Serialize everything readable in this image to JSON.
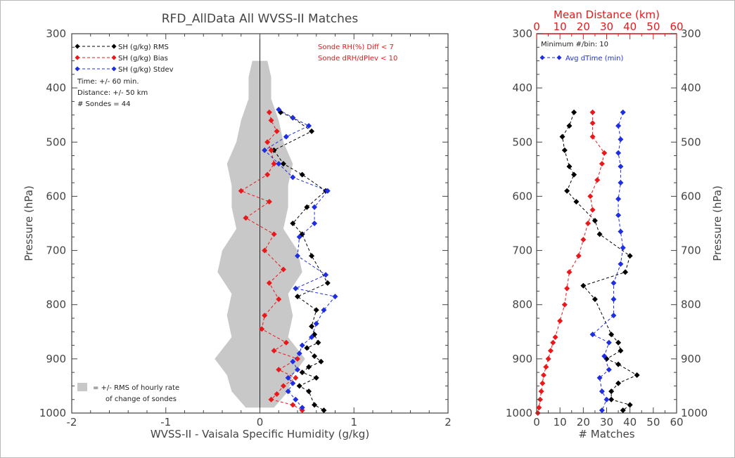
{
  "chart_data": [
    {
      "type": "line",
      "title": "RFD_AllData All WVSS-II Matches",
      "xlabel": "WVSS-II - Vaisala Specific Humidity (g/kg)",
      "ylabel": "Pressure (hPa)",
      "xlim": [
        -2,
        2
      ],
      "ylim": [
        1000,
        300
      ],
      "x_ticks": [
        "-2",
        "-1",
        "0",
        "1",
        "2"
      ],
      "y_ticks": [
        "300",
        "400",
        "500",
        "600",
        "700",
        "800",
        "900",
        "1000"
      ],
      "legend_position": "top-left",
      "series": [
        {
          "name": "SH (g/kg) RMS",
          "color": "#000000",
          "pressure": [
            445,
            455,
            480,
            515,
            540,
            560,
            590,
            620,
            650,
            670,
            710,
            760,
            785,
            810,
            840,
            855,
            870,
            880,
            895,
            905,
            915,
            925,
            935,
            950,
            960,
            985,
            995
          ],
          "values": [
            0.22,
            0.35,
            0.55,
            0.15,
            0.25,
            0.45,
            0.7,
            0.5,
            0.35,
            0.45,
            0.55,
            0.72,
            0.4,
            0.6,
            0.55,
            0.58,
            0.62,
            0.5,
            0.58,
            0.65,
            0.52,
            0.45,
            0.6,
            0.42,
            0.52,
            0.58,
            0.68
          ]
        },
        {
          "name": "SH (g/kg) Bias",
          "color": "#e8181b",
          "pressure": [
            445,
            460,
            480,
            500,
            515,
            540,
            560,
            590,
            610,
            640,
            670,
            700,
            735,
            760,
            790,
            820,
            845,
            870,
            885,
            900,
            920,
            935,
            950,
            965,
            975,
            985,
            995
          ],
          "values": [
            0.1,
            0.12,
            0.18,
            0.08,
            0.12,
            0.15,
            0.08,
            -0.2,
            0.1,
            -0.15,
            0.15,
            0.05,
            0.25,
            0.1,
            0.2,
            0.05,
            0.02,
            0.28,
            0.15,
            0.4,
            0.2,
            0.38,
            0.25,
            0.18,
            0.12,
            0.35,
            0.45
          ]
        },
        {
          "name": "SH (g/kg) Stdev",
          "color": "#1f2ee0",
          "pressure": [
            440,
            455,
            470,
            490,
            515,
            540,
            565,
            590,
            620,
            650,
            675,
            710,
            745,
            770,
            785,
            810,
            835,
            860,
            875,
            890,
            905,
            920,
            935,
            945,
            960,
            975,
            990
          ],
          "values": [
            0.2,
            0.35,
            0.52,
            0.28,
            0.05,
            0.2,
            0.35,
            0.72,
            0.58,
            0.58,
            0.42,
            0.4,
            0.7,
            0.38,
            0.8,
            0.68,
            0.6,
            0.55,
            0.45,
            0.42,
            0.35,
            0.4,
            0.3,
            0.35,
            0.3,
            0.38,
            0.45
          ]
        }
      ],
      "shaded_band": {
        "label_line1": "= +/- RMS of hourly rate",
        "label_line2": "of change of sondes",
        "color": "#c8c8c8",
        "pressure": [
          350,
          380,
          420,
          460,
          500,
          540,
          580,
          620,
          660,
          700,
          740,
          780,
          820,
          860,
          900,
          930,
          960,
          990
        ],
        "halfwidth": [
          0.08,
          0.12,
          0.12,
          0.2,
          0.25,
          0.35,
          0.3,
          0.3,
          0.25,
          0.4,
          0.45,
          0.3,
          0.35,
          0.3,
          0.48,
          0.35,
          0.3,
          0.15
        ]
      },
      "annotations": {
        "time": "Time: +/- 60 min.",
        "distance": "Distance: +/- 50 km",
        "sondes": "# Sondes = 44",
        "filter1": "Sonde RH(%) Diff < 7",
        "filter2": "Sonde dRH/dPlev < 10"
      }
    },
    {
      "type": "line",
      "xlabel": "# Matches",
      "x2label": "Mean Distance (km)",
      "ylabel": "Pressure (hPa)",
      "xlim": [
        0,
        60
      ],
      "x2lim": [
        0,
        60
      ],
      "ylim": [
        1000,
        300
      ],
      "x_ticks": [
        "0",
        "10",
        "20",
        "30",
        "40",
        "50",
        "60"
      ],
      "y_ticks": [
        "300",
        "400",
        "500",
        "600",
        "700",
        "800",
        "900",
        "1000"
      ],
      "minimum_note": "Minimum #/bin: 10",
      "series": [
        {
          "name": "",
          "color": "#000000",
          "pressure": [
            445,
            470,
            490,
            515,
            545,
            560,
            590,
            610,
            645,
            670,
            710,
            740,
            765,
            790,
            855,
            870,
            885,
            900,
            910,
            930,
            945,
            960,
            975,
            985,
            995
          ],
          "values": [
            16,
            14,
            11,
            12,
            14,
            16,
            13,
            17,
            25,
            27,
            40,
            38,
            20,
            25,
            32,
            35,
            36,
            30,
            35,
            43,
            35,
            32,
            32,
            40,
            37
          ]
        },
        {
          "name": "",
          "color": "#e8181b",
          "pressure": [
            445,
            465,
            490,
            520,
            540,
            570,
            600,
            625,
            650,
            680,
            710,
            740,
            770,
            800,
            830,
            860,
            870,
            885,
            900,
            915,
            930,
            945,
            960,
            975,
            990,
            1000
          ],
          "values": [
            24,
            24,
            24,
            29,
            28,
            26,
            23,
            24,
            22,
            20,
            18,
            14,
            13,
            12,
            10,
            8,
            7,
            6,
            5,
            4,
            3,
            2.5,
            2,
            1.5,
            1,
            0.5
          ]
        },
        {
          "name": "Avg dTime (min)",
          "color": "#1f2ee0",
          "pressure": [
            445,
            470,
            495,
            520,
            545,
            575,
            605,
            635,
            665,
            695,
            725,
            760,
            790,
            820,
            855,
            870,
            895,
            920,
            935,
            960,
            975,
            995
          ],
          "values": [
            37,
            35,
            36,
            35,
            36,
            36,
            35,
            35,
            36,
            37,
            36,
            33,
            33,
            33,
            24,
            31,
            29,
            31,
            27,
            28,
            30,
            28
          ]
        }
      ]
    }
  ]
}
